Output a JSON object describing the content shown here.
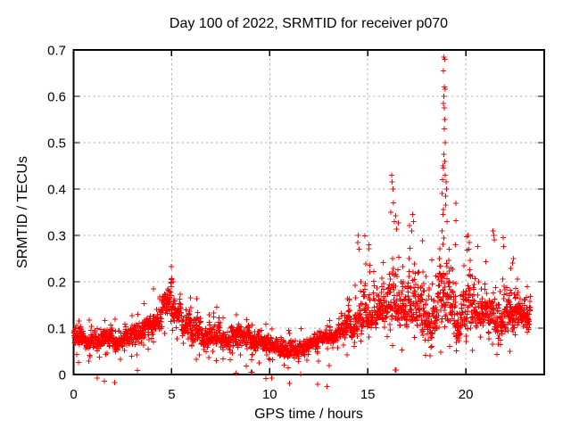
{
  "chart_data": {
    "type": "scatter",
    "title": "Day 100 of 2022, SRMTID for receiver p070",
    "xlabel": "GPS time / hours",
    "ylabel": "SRMTID / TECUs",
    "xlim": [
      0,
      24
    ],
    "ylim": [
      0,
      0.7
    ],
    "xticks": [
      0,
      5,
      10,
      15,
      20
    ],
    "xtick_labels": [
      "0",
      "5",
      "10",
      "15",
      "20"
    ],
    "yticks": [
      0,
      0.1,
      0.2,
      0.3,
      0.4,
      0.5,
      0.6,
      0.7
    ],
    "ytick_labels": [
      "0",
      "0.1",
      "0.2",
      "0.3",
      "0.4",
      "0.5",
      "0.6",
      "0.7"
    ],
    "grid": true,
    "legend": "none",
    "marker": "plus",
    "x_start": 0.02,
    "x_end": 23.3,
    "colors": {
      "marker": "#ff0000",
      "grid": "#b4b4b4",
      "axis": "#000000",
      "text": "#000000",
      "background": "#ffffff"
    },
    "envelope_note": "dense 30s-cadence scatter; per half-hour bin [start_hour, min, median, max] in TECUs read from plot",
    "envelope": [
      [
        0.0,
        0.04,
        0.08,
        0.13
      ],
      [
        0.5,
        0.03,
        0.07,
        0.12
      ],
      [
        1.0,
        0.03,
        0.07,
        0.11
      ],
      [
        1.5,
        0.04,
        0.08,
        0.12
      ],
      [
        2.0,
        0.03,
        0.07,
        0.12
      ],
      [
        2.5,
        0.04,
        0.08,
        0.13
      ],
      [
        3.0,
        0.04,
        0.09,
        0.14
      ],
      [
        3.5,
        0.05,
        0.1,
        0.16
      ],
      [
        4.0,
        0.06,
        0.11,
        0.19
      ],
      [
        4.5,
        0.08,
        0.15,
        0.24
      ],
      [
        5.0,
        0.07,
        0.13,
        0.21
      ],
      [
        5.5,
        0.06,
        0.1,
        0.18
      ],
      [
        6.0,
        0.04,
        0.09,
        0.17
      ],
      [
        6.5,
        0.04,
        0.08,
        0.14
      ],
      [
        7.0,
        0.04,
        0.08,
        0.15
      ],
      [
        7.5,
        0.03,
        0.07,
        0.13
      ],
      [
        8.0,
        0.04,
        0.08,
        0.13
      ],
      [
        8.5,
        0.035,
        0.08,
        0.13
      ],
      [
        9.0,
        0.02,
        0.07,
        0.12
      ],
      [
        9.5,
        0.03,
        0.07,
        0.12
      ],
      [
        10.0,
        0.03,
        0.06,
        0.11
      ],
      [
        10.5,
        0.02,
        0.05,
        0.1
      ],
      [
        11.0,
        0.02,
        0.05,
        0.09
      ],
      [
        11.5,
        0.02,
        0.06,
        0.1
      ],
      [
        12.0,
        0.04,
        0.07,
        0.1
      ],
      [
        12.5,
        0.05,
        0.08,
        0.11
      ],
      [
        13.0,
        0.05,
        0.08,
        0.13
      ],
      [
        13.5,
        0.06,
        0.09,
        0.17
      ],
      [
        14.0,
        0.06,
        0.1,
        0.2
      ],
      [
        14.5,
        0.07,
        0.12,
        0.3
      ],
      [
        15.0,
        0.08,
        0.12,
        0.28
      ],
      [
        15.5,
        0.08,
        0.13,
        0.25
      ],
      [
        16.0,
        0.06,
        0.13,
        0.35
      ],
      [
        16.5,
        0.05,
        0.12,
        0.33
      ],
      [
        17.0,
        0.07,
        0.13,
        0.33
      ],
      [
        17.5,
        0.04,
        0.12,
        0.3
      ],
      [
        18.0,
        0.04,
        0.1,
        0.26
      ],
      [
        18.5,
        0.04,
        0.14,
        0.37
      ],
      [
        19.0,
        0.05,
        0.14,
        0.38
      ],
      [
        19.5,
        0.05,
        0.1,
        0.25
      ],
      [
        20.0,
        0.05,
        0.12,
        0.3
      ],
      [
        20.5,
        0.08,
        0.13,
        0.28
      ],
      [
        21.0,
        0.06,
        0.11,
        0.25
      ],
      [
        21.5,
        0.04,
        0.12,
        0.31
      ],
      [
        22.0,
        0.05,
        0.11,
        0.24
      ],
      [
        22.5,
        0.08,
        0.12,
        0.22
      ],
      [
        23.0,
        0.08,
        0.12,
        0.2
      ]
    ],
    "outliers_note": "distinct extreme points [hour, TECUs] read from plot",
    "outliers": [
      [
        18.78,
        0.31
      ],
      [
        18.8,
        0.39
      ],
      [
        18.82,
        0.42
      ],
      [
        18.83,
        0.345
      ],
      [
        18.84,
        0.45
      ],
      [
        18.85,
        0.655
      ],
      [
        18.86,
        0.445
      ],
      [
        18.87,
        0.585
      ],
      [
        18.88,
        0.685
      ],
      [
        18.88,
        0.475
      ],
      [
        18.89,
        0.6
      ],
      [
        18.9,
        0.62
      ],
      [
        18.9,
        0.53
      ],
      [
        18.91,
        0.575
      ],
      [
        18.92,
        0.68
      ],
      [
        18.92,
        0.46
      ],
      [
        18.93,
        0.55
      ],
      [
        18.94,
        0.615
      ],
      [
        18.95,
        0.43
      ],
      [
        18.96,
        0.5
      ],
      [
        18.97,
        0.385
      ],
      [
        18.98,
        0.365
      ],
      [
        19.0,
        0.415
      ],
      [
        19.02,
        0.4
      ],
      [
        19.05,
        0.33
      ],
      [
        16.18,
        0.35
      ],
      [
        16.22,
        0.43
      ],
      [
        16.25,
        0.415
      ],
      [
        16.28,
        0.4
      ],
      [
        16.3,
        0.37
      ],
      [
        16.35,
        0.33
      ],
      [
        14.48,
        0.285
      ],
      [
        14.52,
        0.3
      ],
      [
        14.55,
        0.27
      ],
      [
        15.05,
        0.28
      ],
      [
        17.25,
        0.31
      ],
      [
        17.28,
        0.345
      ],
      [
        17.33,
        0.33
      ],
      [
        20.12,
        0.3
      ],
      [
        20.15,
        0.27
      ],
      [
        20.18,
        0.285
      ],
      [
        21.38,
        0.31
      ],
      [
        21.42,
        0.3
      ],
      [
        21.45,
        0.29
      ],
      [
        22.38,
        0.24
      ],
      [
        22.42,
        0.25
      ],
      [
        9.05,
        0.005
      ],
      [
        9.09,
        0.005
      ],
      [
        16.4,
        0.01
      ],
      [
        16.44,
        0.01
      ]
    ]
  },
  "render_hints": {
    "seed": 42,
    "points_per_bin": 56,
    "autocorr": 0.5,
    "noise_scale": 0.62
  }
}
